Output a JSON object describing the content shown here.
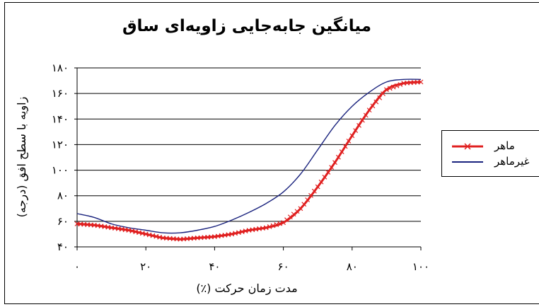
{
  "chart_data": {
    "type": "line",
    "title": "میانگین جابه‌جایی زاویه‌ای ساق",
    "xlabel": "مدت زمان حرکت (٪)",
    "ylabel": "زاویه با سطح افق (درجه)",
    "xlim": [
      0,
      100
    ],
    "ylim": [
      40,
      180
    ],
    "xticks": [
      0,
      20,
      40,
      60,
      80,
      100
    ],
    "xtick_labels": [
      "۰",
      "۲۰",
      "۴۰",
      "۶۰",
      "۸۰",
      "۱۰۰"
    ],
    "yticks": [
      40,
      60,
      80,
      100,
      120,
      140,
      160,
      180
    ],
    "ytick_labels": [
      "۴۰",
      "۶۰",
      "۸۰",
      "۱۰۰",
      "۱۲۰",
      "۱۴۰",
      "۱۶۰",
      "۱۸۰"
    ],
    "grid": "horizontal",
    "legend_position": "right",
    "x": [
      0,
      5,
      10,
      15,
      20,
      25,
      30,
      35,
      40,
      45,
      50,
      55,
      60,
      65,
      70,
      75,
      80,
      85,
      90,
      95,
      100
    ],
    "series": [
      {
        "name": "ماهر",
        "color": "#e02020",
        "marker": "x",
        "values": [
          58,
          57,
          55,
          53,
          50,
          47,
          46,
          47,
          48,
          50,
          53,
          55,
          59,
          70,
          87,
          106,
          127,
          147,
          163,
          168,
          169
        ]
      },
      {
        "name": "غیرماهر",
        "color": "#1a237e",
        "marker": "none",
        "values": [
          66,
          63,
          58,
          55,
          53,
          51,
          51,
          53,
          56,
          61,
          67,
          74,
          83,
          97,
          116,
          135,
          150,
          161,
          169,
          171,
          171
        ]
      }
    ]
  }
}
